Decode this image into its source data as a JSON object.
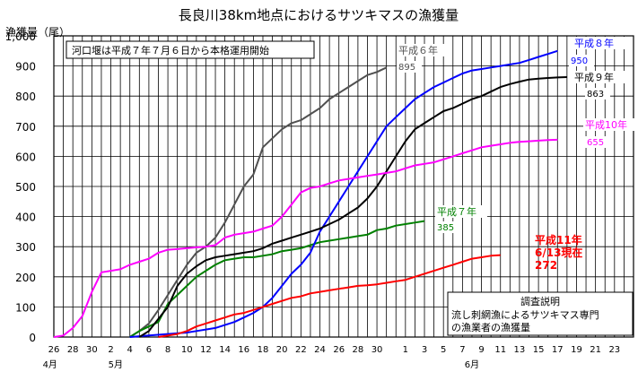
{
  "chart_data": {
    "type": "line",
    "title": "長良川38km地点におけるサツキマスの漁獲量",
    "ylabel": "漁獲量（尾）",
    "ylim": [
      0,
      1000
    ],
    "yticks": [
      0,
      100,
      200,
      300,
      400,
      500,
      600,
      700,
      800,
      900,
      1000
    ],
    "ytick_labels": [
      "0",
      "100",
      "200",
      "300",
      "400",
      "500",
      "600",
      "700",
      "800",
      "900",
      "1,000"
    ],
    "x_unit": "day index from April 26",
    "x_tick_labels": [
      {
        "x": 0,
        "label": "26"
      },
      {
        "x": 2,
        "label": "28"
      },
      {
        "x": 4,
        "label": "30"
      },
      {
        "x": 6,
        "label": "2"
      },
      {
        "x": 8,
        "label": "4"
      },
      {
        "x": 10,
        "label": "6"
      },
      {
        "x": 12,
        "label": "8"
      },
      {
        "x": 14,
        "label": "10"
      },
      {
        "x": 16,
        "label": "12"
      },
      {
        "x": 18,
        "label": "14"
      },
      {
        "x": 20,
        "label": "16"
      },
      {
        "x": 22,
        "label": "18"
      },
      {
        "x": 24,
        "label": "20"
      },
      {
        "x": 26,
        "label": "22"
      },
      {
        "x": 28,
        "label": "24"
      },
      {
        "x": 30,
        "label": "26"
      },
      {
        "x": 32,
        "label": "28"
      },
      {
        "x": 34,
        "label": "30"
      },
      {
        "x": 37,
        "label": "1"
      },
      {
        "x": 39,
        "label": "3"
      },
      {
        "x": 41,
        "label": "5"
      },
      {
        "x": 43,
        "label": "7"
      },
      {
        "x": 45,
        "label": "9"
      },
      {
        "x": 47,
        "label": "11"
      },
      {
        "x": 49,
        "label": "13"
      },
      {
        "x": 51,
        "label": "15"
      },
      {
        "x": 53,
        "label": "17"
      },
      {
        "x": 55,
        "label": "19"
      },
      {
        "x": 57,
        "label": "21"
      },
      {
        "x": 59,
        "label": "23"
      }
    ],
    "month_labels": [
      {
        "x": -0.4,
        "label": "4月"
      },
      {
        "x": 6.5,
        "label": "5月"
      },
      {
        "x": 44,
        "label": "6月"
      }
    ],
    "xlim": [
      0,
      61
    ],
    "grid": true,
    "note": "河口堰は平成７年７月６日から本格運用開始",
    "explanation": {
      "title": "調査説明",
      "lines": [
        "流し刺網漁によるサツキマス専門",
        "の漁業者の漁獲量"
      ]
    },
    "series": [
      {
        "name": "平成６年",
        "color": "#505050",
        "end_value": "895",
        "points": [
          [
            8,
            0
          ],
          [
            9,
            20
          ],
          [
            10,
            45
          ],
          [
            11,
            90
          ],
          [
            12,
            140
          ],
          [
            13,
            190
          ],
          [
            14,
            240
          ],
          [
            15,
            280
          ],
          [
            16,
            300
          ],
          [
            17,
            330
          ],
          [
            18,
            380
          ],
          [
            19,
            440
          ],
          [
            20,
            500
          ],
          [
            21,
            540
          ],
          [
            22,
            630
          ],
          [
            23,
            660
          ],
          [
            24,
            690
          ],
          [
            25,
            710
          ],
          [
            26,
            720
          ],
          [
            27,
            740
          ],
          [
            28,
            760
          ],
          [
            29,
            790
          ],
          [
            30,
            810
          ],
          [
            31,
            830
          ],
          [
            32,
            850
          ],
          [
            33,
            870
          ],
          [
            34,
            880
          ],
          [
            35,
            895
          ]
        ]
      },
      {
        "name": "平成７年",
        "color": "#008000",
        "end_value": "385",
        "points": [
          [
            8,
            0
          ],
          [
            9,
            20
          ],
          [
            10,
            35
          ],
          [
            11,
            50
          ],
          [
            12,
            110
          ],
          [
            13,
            140
          ],
          [
            14,
            170
          ],
          [
            15,
            200
          ],
          [
            16,
            220
          ],
          [
            17,
            240
          ],
          [
            18,
            255
          ],
          [
            19,
            260
          ],
          [
            20,
            265
          ],
          [
            21,
            265
          ],
          [
            22,
            270
          ],
          [
            23,
            275
          ],
          [
            24,
            285
          ],
          [
            25,
            290
          ],
          [
            26,
            295
          ],
          [
            27,
            305
          ],
          [
            28,
            315
          ],
          [
            29,
            320
          ],
          [
            30,
            325
          ],
          [
            31,
            330
          ],
          [
            32,
            335
          ],
          [
            33,
            340
          ],
          [
            34,
            355
          ],
          [
            35,
            360
          ],
          [
            36,
            370
          ],
          [
            37,
            375
          ],
          [
            38,
            380
          ],
          [
            39,
            385
          ]
        ]
      },
      {
        "name": "平成８年",
        "color": "#0000FF",
        "end_value": "950",
        "points": [
          [
            8,
            0
          ],
          [
            10,
            5
          ],
          [
            12,
            10
          ],
          [
            14,
            15
          ],
          [
            15,
            20
          ],
          [
            16,
            25
          ],
          [
            17,
            30
          ],
          [
            18,
            40
          ],
          [
            19,
            50
          ],
          [
            20,
            65
          ],
          [
            21,
            80
          ],
          [
            22,
            100
          ],
          [
            23,
            130
          ],
          [
            24,
            170
          ],
          [
            25,
            210
          ],
          [
            26,
            240
          ],
          [
            27,
            280
          ],
          [
            28,
            350
          ],
          [
            29,
            400
          ],
          [
            30,
            450
          ],
          [
            31,
            500
          ],
          [
            32,
            550
          ],
          [
            33,
            600
          ],
          [
            34,
            650
          ],
          [
            35,
            700
          ],
          [
            36,
            730
          ],
          [
            37,
            760
          ],
          [
            38,
            790
          ],
          [
            39,
            810
          ],
          [
            40,
            830
          ],
          [
            41,
            845
          ],
          [
            42,
            860
          ],
          [
            43,
            875
          ],
          [
            44,
            885
          ],
          [
            45,
            890
          ],
          [
            46,
            895
          ],
          [
            47,
            900
          ],
          [
            48,
            905
          ],
          [
            49,
            910
          ],
          [
            50,
            920
          ],
          [
            51,
            930
          ],
          [
            52,
            940
          ],
          [
            53,
            950
          ]
        ]
      },
      {
        "name": "平成９年",
        "color": "#000000",
        "end_value": "863",
        "points": [
          [
            9,
            0
          ],
          [
            10,
            20
          ],
          [
            11,
            60
          ],
          [
            12,
            100
          ],
          [
            13,
            170
          ],
          [
            14,
            210
          ],
          [
            15,
            235
          ],
          [
            16,
            255
          ],
          [
            17,
            265
          ],
          [
            18,
            270
          ],
          [
            19,
            275
          ],
          [
            20,
            280
          ],
          [
            21,
            285
          ],
          [
            22,
            295
          ],
          [
            23,
            310
          ],
          [
            24,
            320
          ],
          [
            25,
            330
          ],
          [
            26,
            340
          ],
          [
            27,
            350
          ],
          [
            28,
            360
          ],
          [
            29,
            375
          ],
          [
            30,
            390
          ],
          [
            31,
            410
          ],
          [
            32,
            430
          ],
          [
            33,
            460
          ],
          [
            34,
            500
          ],
          [
            35,
            550
          ],
          [
            36,
            600
          ],
          [
            37,
            650
          ],
          [
            38,
            690
          ],
          [
            39,
            710
          ],
          [
            40,
            730
          ],
          [
            41,
            750
          ],
          [
            42,
            760
          ],
          [
            43,
            775
          ],
          [
            44,
            790
          ],
          [
            45,
            800
          ],
          [
            46,
            815
          ],
          [
            47,
            830
          ],
          [
            48,
            840
          ],
          [
            49,
            848
          ],
          [
            50,
            855
          ],
          [
            51,
            858
          ],
          [
            52,
            860
          ],
          [
            53,
            862
          ],
          [
            54,
            863
          ]
        ]
      },
      {
        "name": "平成10年",
        "color": "#FF00FF",
        "end_value": "655",
        "points": [
          [
            0,
            0
          ],
          [
            1,
            5
          ],
          [
            2,
            30
          ],
          [
            3,
            70
          ],
          [
            4,
            150
          ],
          [
            5,
            215
          ],
          [
            6,
            220
          ],
          [
            7,
            225
          ],
          [
            8,
            240
          ],
          [
            9,
            250
          ],
          [
            10,
            260
          ],
          [
            11,
            280
          ],
          [
            12,
            290
          ],
          [
            13,
            292
          ],
          [
            14,
            295
          ],
          [
            15,
            298
          ],
          [
            16,
            300
          ],
          [
            17,
            305
          ],
          [
            18,
            330
          ],
          [
            19,
            340
          ],
          [
            20,
            345
          ],
          [
            21,
            350
          ],
          [
            22,
            360
          ],
          [
            23,
            370
          ],
          [
            24,
            400
          ],
          [
            25,
            440
          ],
          [
            26,
            480
          ],
          [
            27,
            495
          ],
          [
            28,
            500
          ],
          [
            29,
            510
          ],
          [
            30,
            520
          ],
          [
            31,
            525
          ],
          [
            32,
            530
          ],
          [
            33,
            535
          ],
          [
            34,
            540
          ],
          [
            35,
            545
          ],
          [
            36,
            550
          ],
          [
            37,
            560
          ],
          [
            38,
            570
          ],
          [
            39,
            575
          ],
          [
            40,
            580
          ],
          [
            41,
            590
          ],
          [
            42,
            600
          ],
          [
            43,
            610
          ],
          [
            44,
            620
          ],
          [
            45,
            630
          ],
          [
            46,
            635
          ],
          [
            47,
            640
          ],
          [
            48,
            645
          ],
          [
            49,
            648
          ],
          [
            50,
            650
          ],
          [
            51,
            652
          ],
          [
            52,
            654
          ],
          [
            53,
            655
          ]
        ]
      },
      {
        "name": "平成11年",
        "color": "#FF0000",
        "end_value": "272",
        "label_lines": [
          "平成11年",
          "6/13現在",
          "272"
        ],
        "points": [
          [
            11,
            0
          ],
          [
            13,
            10
          ],
          [
            14,
            20
          ],
          [
            15,
            35
          ],
          [
            16,
            45
          ],
          [
            17,
            55
          ],
          [
            18,
            65
          ],
          [
            19,
            75
          ],
          [
            20,
            80
          ],
          [
            21,
            90
          ],
          [
            22,
            100
          ],
          [
            23,
            110
          ],
          [
            24,
            120
          ],
          [
            25,
            130
          ],
          [
            26,
            135
          ],
          [
            27,
            145
          ],
          [
            28,
            150
          ],
          [
            29,
            155
          ],
          [
            30,
            160
          ],
          [
            31,
            165
          ],
          [
            32,
            170
          ],
          [
            33,
            172
          ],
          [
            34,
            175
          ],
          [
            35,
            180
          ],
          [
            36,
            185
          ],
          [
            37,
            190
          ],
          [
            38,
            200
          ],
          [
            39,
            210
          ],
          [
            40,
            220
          ],
          [
            41,
            230
          ],
          [
            42,
            240
          ],
          [
            43,
            250
          ],
          [
            44,
            260
          ],
          [
            45,
            265
          ],
          [
            46,
            270
          ],
          [
            47,
            272
          ]
        ]
      }
    ]
  }
}
